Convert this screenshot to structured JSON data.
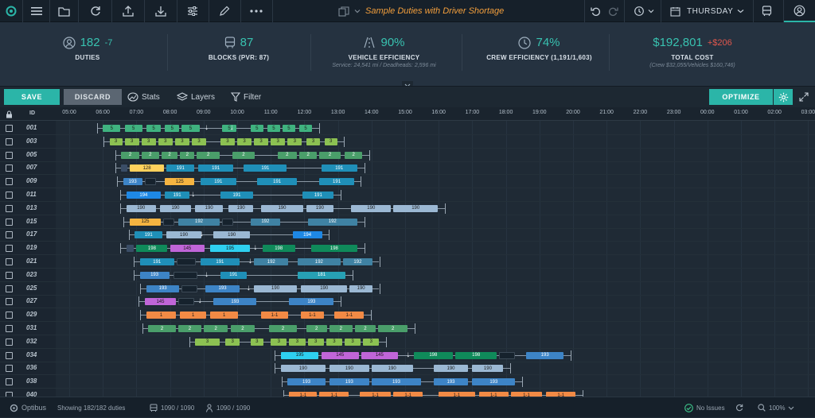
{
  "app": {
    "brand": "Optibus"
  },
  "topbar": {
    "title": "Sample Duties with Driver Shortage",
    "day": "THURSDAY"
  },
  "stats": [
    {
      "icon": "person-icon",
      "value": "182",
      "delta": "-7",
      "delta_color": "#38c2b0",
      "label": "DUTIES",
      "sub": ""
    },
    {
      "icon": "bus-icon",
      "value": "87",
      "delta": "",
      "delta_color": "",
      "label": "BLOCKS (PVR: 87)",
      "sub": ""
    },
    {
      "icon": "road-icon",
      "value": "90%",
      "delta": "",
      "delta_color": "",
      "label": "VEHICLE EFFICIENCY",
      "sub": "Service: 24,541 mi / Deadheads: 2,596 mi"
    },
    {
      "icon": "clock-icon",
      "value": "74%",
      "delta": "",
      "delta_color": "",
      "label": "CREW EFFICIENCY (1,191/1,603)",
      "sub": ""
    },
    {
      "icon": "",
      "value": "$192,801",
      "delta": "+$206",
      "delta_color": "#e0574d",
      "label": "TOTAL COST",
      "sub": "(Crew $32,055/Vehicles $160,746)"
    }
  ],
  "toolbar": {
    "save": "SAVE",
    "discard": "DISCARD",
    "stats": "Stats",
    "layers": "Layers",
    "filter": "Filter",
    "optimize": "OPTIMIZE"
  },
  "grid": {
    "id_header": "ID",
    "hours": [
      "05:00",
      "06:00",
      "07:00",
      "08:00",
      "09:00",
      "10:00",
      "11:00",
      "12:00",
      "13:00",
      "14:00",
      "15:00",
      "16:00",
      "17:00",
      "18:00",
      "19:00",
      "20:00",
      "21:00",
      "22:00",
      "23:00",
      "00:00",
      "01:00",
      "02:00",
      "03:00"
    ],
    "colors": {
      "5": "#3fb27f",
      "3": "#8cc152",
      "2": "#4a9e6a",
      "191": "#1f8fb8",
      "190": "#9bb8d3",
      "192": "#3f82a3",
      "193": "#3d84c6",
      "194": "#1e88e5",
      "195": "#2ed0f0",
      "198": "#0f8a5a",
      "145": "#c065d8",
      "181": "#27a0b4",
      "125": "#f5b441",
      "128": "#ffd15c",
      "1-1": "#f28a45",
      "1": "#f28a45",
      "gap": "#16222d",
      "dh": "#3a4d66"
    },
    "rows": [
      {
        "id": "001",
        "segs": [
          [
            "5",
            6.0,
            6.55
          ],
          [
            "5",
            6.65,
            7.2
          ],
          [
            "5",
            7.3,
            7.75
          ],
          [
            "5",
            7.85,
            8.3
          ],
          [
            "5",
            8.35,
            8.9
          ],
          [
            "5",
            9.55,
            10.0
          ],
          [
            "5",
            10.4,
            10.8
          ],
          [
            "5",
            10.9,
            11.3
          ],
          [
            "5",
            11.35,
            11.75
          ],
          [
            "5",
            11.85,
            12.25
          ]
        ],
        "arrows": [
          9.1,
          9.85
        ]
      },
      {
        "id": "003",
        "segs": [
          [
            "3",
            6.2,
            6.6
          ],
          [
            "3",
            6.65,
            7.1
          ],
          [
            "3",
            7.15,
            7.6
          ],
          [
            "3",
            7.65,
            8.1
          ],
          [
            "3",
            8.15,
            8.6
          ],
          [
            "3",
            8.65,
            9.1
          ],
          [
            "3",
            9.5,
            9.95
          ],
          [
            "3",
            10.0,
            10.45
          ],
          [
            "3",
            10.5,
            10.95
          ],
          [
            "3",
            11.0,
            11.45
          ],
          [
            "3",
            11.5,
            11.95
          ],
          [
            "3",
            12.05,
            12.5
          ],
          [
            "3",
            12.6,
            13.0
          ]
        ]
      },
      {
        "id": "005",
        "segs": [
          [
            "2",
            6.55,
            7.1
          ],
          [
            "2",
            7.15,
            7.7
          ],
          [
            "2",
            7.75,
            8.25
          ],
          [
            "2",
            8.3,
            8.75
          ],
          [
            "2",
            8.8,
            9.5
          ],
          [
            "2",
            9.85,
            10.55
          ],
          [
            "2",
            11.2,
            11.8
          ],
          [
            "2",
            11.85,
            12.4
          ],
          [
            "2",
            12.45,
            13.1
          ],
          [
            "2",
            13.2,
            13.75
          ]
        ]
      },
      {
        "id": "007",
        "segs": [
          [
            "dh",
            6.55,
            6.75
          ],
          [
            "128",
            6.8,
            7.85
          ],
          [
            "191",
            7.9,
            8.75
          ],
          [
            "191",
            8.85,
            9.9
          ],
          [
            "191",
            10.2,
            11.5
          ],
          [
            "191",
            12.5,
            13.6
          ]
        ]
      },
      {
        "id": "009",
        "segs": [
          [
            "193",
            6.6,
            7.2
          ],
          [
            "gap",
            7.25,
            7.6
          ],
          [
            "125",
            7.85,
            8.75
          ],
          [
            "191",
            8.9,
            10.0
          ],
          [
            "191",
            10.6,
            11.8
          ],
          [
            "191",
            12.45,
            13.5
          ]
        ]
      },
      {
        "id": "011",
        "segs": [
          [
            "194",
            6.7,
            7.75
          ],
          [
            "191",
            7.85,
            8.6
          ],
          [
            "191",
            9.5,
            10.5
          ],
          [
            "191",
            11.95,
            12.9
          ]
        ],
        "arrows": [
          8.7
        ]
      },
      {
        "id": "013",
        "segs": [
          [
            "190",
            6.7,
            7.6
          ],
          [
            "190",
            7.7,
            8.65
          ],
          [
            "190",
            8.75,
            9.6
          ],
          [
            "190",
            9.75,
            10.5
          ],
          [
            "190",
            10.7,
            12.0
          ],
          [
            "190",
            12.05,
            12.9
          ],
          [
            "190",
            13.4,
            14.6
          ],
          [
            "190",
            14.65,
            16.0
          ]
        ]
      },
      {
        "id": "015",
        "segs": [
          [
            "125",
            6.8,
            7.75
          ],
          [
            "gap",
            7.8,
            8.15
          ],
          [
            "192",
            8.25,
            9.5
          ],
          [
            "gap",
            9.55,
            9.9
          ],
          [
            "192",
            10.4,
            11.3
          ],
          [
            "192",
            12.1,
            13.6
          ]
        ]
      },
      {
        "id": "017",
        "segs": [
          [
            "191",
            6.95,
            7.8
          ],
          [
            "190",
            7.9,
            8.95
          ],
          [
            "190",
            9.3,
            10.4
          ],
          [
            "194",
            11.65,
            12.55
          ]
        ],
        "arrows": [
          8.95
        ]
      },
      {
        "id": "019",
        "segs": [
          [
            "dh",
            6.7,
            6.95
          ],
          [
            "198",
            7.0,
            7.95
          ],
          [
            "145",
            8.0,
            9.05
          ],
          [
            "195",
            9.2,
            10.4
          ],
          [
            "198",
            10.75,
            11.75
          ],
          [
            "198",
            12.2,
            13.6
          ]
        ],
        "arrows": [
          10.55
        ]
      },
      {
        "id": "021",
        "segs": [
          [
            "191",
            7.1,
            8.15
          ],
          [
            "gap",
            8.2,
            8.8
          ],
          [
            "191",
            8.9,
            10.1
          ],
          [
            "192",
            10.5,
            11.55
          ],
          [
            "192",
            11.8,
            13.1
          ],
          [
            "192",
            13.15,
            14.05
          ]
        ],
        "arrows": [
          10.4
        ]
      },
      {
        "id": "023",
        "segs": [
          [
            "193",
            7.1,
            8.0
          ],
          [
            "gap",
            8.1,
            8.85
          ],
          [
            "191",
            9.5,
            10.3
          ],
          [
            "181",
            11.8,
            13.25
          ]
        ],
        "arrows": [
          9.1
        ]
      },
      {
        "id": "025",
        "segs": [
          [
            "193",
            7.3,
            8.3
          ],
          [
            "gap",
            8.35,
            8.85
          ],
          [
            "193",
            9.05,
            10.1
          ],
          [
            "190",
            10.5,
            11.8
          ],
          [
            "190",
            11.9,
            13.3
          ],
          [
            "190",
            13.35,
            14.05
          ]
        ],
        "arrows": [
          10.35
        ]
      },
      {
        "id": "027",
        "segs": [
          [
            "145",
            7.25,
            8.2
          ],
          [
            "gap",
            8.25,
            8.75
          ],
          [
            "193",
            9.3,
            10.6
          ],
          [
            "193",
            11.55,
            12.9
          ]
        ],
        "arrows": [
          8.9
        ]
      },
      {
        "id": "029",
        "segs": [
          [
            "1",
            7.3,
            8.2
          ],
          [
            "1",
            8.3,
            9.1
          ],
          [
            "1",
            9.2,
            10.05
          ],
          [
            "1-1",
            10.7,
            11.55
          ],
          [
            "1-1",
            11.9,
            12.6
          ],
          [
            "1-1",
            12.9,
            13.8
          ]
        ]
      },
      {
        "id": "031",
        "segs": [
          [
            "2",
            7.35,
            8.2
          ],
          [
            "2",
            8.25,
            8.95
          ],
          [
            "2",
            9.0,
            9.75
          ],
          [
            "2",
            9.8,
            10.55
          ],
          [
            "2",
            10.95,
            11.8
          ],
          [
            "2",
            12.05,
            12.7
          ],
          [
            "2",
            12.75,
            13.45
          ],
          [
            "2",
            13.5,
            14.15
          ],
          [
            "2",
            14.2,
            15.1
          ]
        ]
      },
      {
        "id": "032",
        "segs": [
          [
            "3",
            8.75,
            9.5
          ],
          [
            "3",
            9.65,
            10.1
          ],
          [
            "3",
            10.4,
            10.8
          ],
          [
            "3",
            11.0,
            11.5
          ],
          [
            "3",
            11.55,
            12.05
          ],
          [
            "3",
            12.1,
            12.6
          ],
          [
            "3",
            12.65,
            13.15
          ],
          [
            "3",
            13.2,
            13.7
          ],
          [
            "3",
            13.75,
            14.25
          ]
        ]
      },
      {
        "id": "034",
        "segs": [
          [
            "195",
            11.3,
            12.45
          ],
          [
            "145",
            12.5,
            13.65
          ],
          [
            "145",
            13.7,
            14.8
          ],
          [
            "198",
            15.25,
            16.45
          ],
          [
            "198",
            16.5,
            17.75
          ],
          [
            "gap",
            17.8,
            18.3
          ],
          [
            "193",
            18.6,
            19.75
          ]
        ],
        "arrows": [
          15.1
        ]
      },
      {
        "id": "036",
        "segs": [
          [
            "190",
            11.3,
            12.65
          ],
          [
            "190",
            12.75,
            13.95
          ],
          [
            "190",
            14.0,
            15.25
          ],
          [
            "190",
            15.85,
            16.9
          ],
          [
            "190",
            17.0,
            17.95
          ]
        ]
      },
      {
        "id": "038",
        "segs": [
          [
            "193",
            11.5,
            12.65
          ],
          [
            "193",
            12.75,
            13.95
          ],
          [
            "193",
            14.0,
            15.5
          ],
          [
            "193",
            15.85,
            16.9
          ],
          [
            "193",
            17.0,
            18.3
          ]
        ]
      },
      {
        "id": "040",
        "segs": [
          [
            "1-1",
            11.55,
            12.4
          ],
          [
            "1-1",
            12.45,
            13.35
          ],
          [
            "1-1",
            13.65,
            14.6
          ],
          [
            "1-1",
            14.65,
            15.55
          ],
          [
            "1-1",
            16.0,
            17.1
          ],
          [
            "1-1",
            17.2,
            18.1
          ],
          [
            "1-1",
            18.15,
            19.1
          ],
          [
            "1-1",
            19.2,
            20.1
          ]
        ]
      }
    ]
  },
  "footer": {
    "brand": "Optibus",
    "showing": "Showing 182/182 duties",
    "vehicles": "1090 / 1090",
    "drivers": "1090 / 1090",
    "issues": "No Issues",
    "zoom": "100%"
  }
}
